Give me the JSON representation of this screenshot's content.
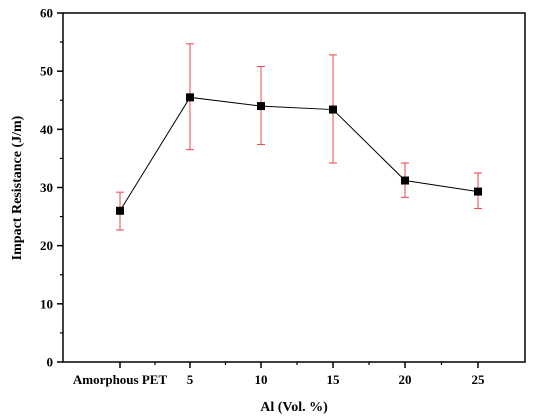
{
  "chart_data": {
    "type": "line",
    "title": "",
    "xlabel": "Al (Vol. %)",
    "ylabel": "Impact Resistance (J/m)",
    "categories": [
      "Amorphous PET",
      "5",
      "10",
      "15",
      "20",
      "25"
    ],
    "series": [
      {
        "values": [
          26.0,
          45.5,
          44.0,
          43.4,
          31.2,
          29.3
        ],
        "error_upper": [
          29.2,
          54.7,
          50.8,
          52.8,
          34.2,
          32.5
        ],
        "error_lower": [
          22.7,
          36.5,
          37.4,
          34.2,
          28.3,
          26.4
        ]
      }
    ],
    "ylim": [
      0,
      60
    ],
    "yticks": [
      0,
      10,
      20,
      30,
      40,
      50,
      60
    ],
    "grid": false,
    "legend": "none",
    "colors": {
      "line": "#000000",
      "marker": "#000000",
      "error_bar": "#e8474c",
      "axis": "#000000"
    }
  }
}
